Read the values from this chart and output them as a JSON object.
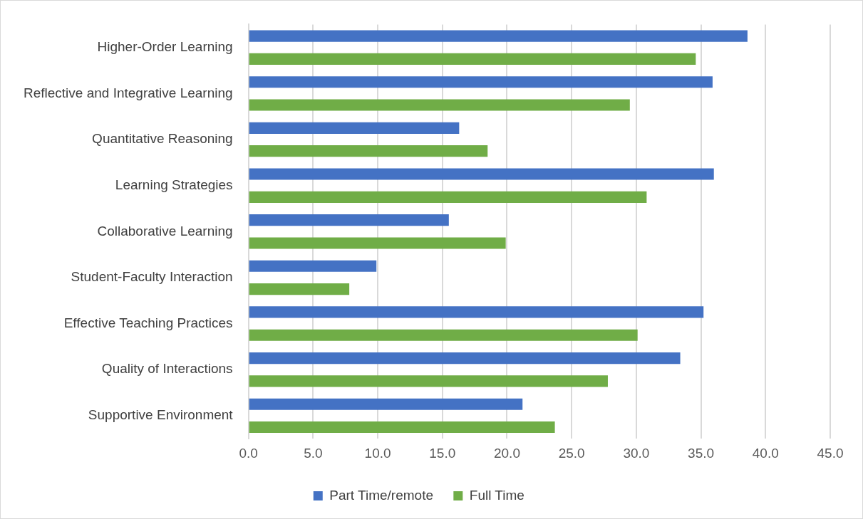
{
  "chart_data": {
    "type": "bar",
    "orientation": "horizontal",
    "categories": [
      "Higher-Order Learning",
      "Reflective and Integrative Learning",
      "Quantitative Reasoning",
      "Learning Strategies",
      "Collaborative Learning",
      "Student-Faculty Interaction",
      "Effective Teaching Practices",
      "Quality of Interactions",
      "Supportive Environment"
    ],
    "series": [
      {
        "name": "Part Time/remote",
        "color": "#4472c4",
        "values": [
          38.6,
          35.9,
          16.3,
          36.0,
          15.5,
          9.9,
          35.2,
          33.4,
          21.2
        ]
      },
      {
        "name": "Full Time",
        "color": "#70ad47",
        "values": [
          34.6,
          29.5,
          18.5,
          30.8,
          19.9,
          7.8,
          30.1,
          27.8,
          23.7
        ]
      }
    ],
    "xlim": [
      0,
      45
    ],
    "xticks": [
      {
        "value": 0,
        "label": "0.0"
      },
      {
        "value": 5,
        "label": "5.0"
      },
      {
        "value": 10,
        "label": "10.0"
      },
      {
        "value": 15,
        "label": "15.0"
      },
      {
        "value": 20,
        "label": "20.0"
      },
      {
        "value": 25,
        "label": "25.0"
      },
      {
        "value": 30,
        "label": "30.0"
      },
      {
        "value": 35,
        "label": "35.0"
      },
      {
        "value": 40,
        "label": "40.0"
      },
      {
        "value": 45,
        "label": "45.0"
      }
    ],
    "grid": "x",
    "legend": "bottom"
  }
}
